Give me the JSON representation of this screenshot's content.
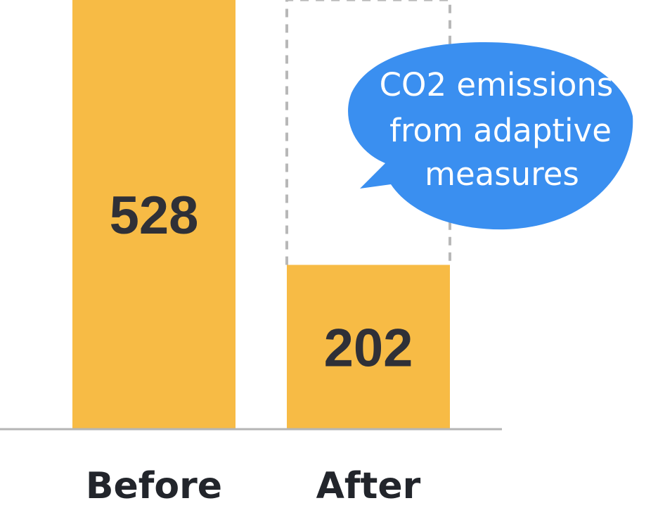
{
  "chart_data": {
    "type": "bar",
    "categories": [
      "Before",
      "After"
    ],
    "values": [
      528,
      202
    ],
    "reference_value": 528,
    "annotation": [
      "CO2 emissions",
      "from adaptive",
      "measures"
    ],
    "colors": {
      "bar": "#f7bb45",
      "bubble": "#3a8ff0",
      "baseline": "#b5b5b5",
      "dashed_outline": "#b8b8b8",
      "value_text": "#2f3037",
      "category_text": "#22252b",
      "bubble_text": "#ffffff"
    }
  }
}
